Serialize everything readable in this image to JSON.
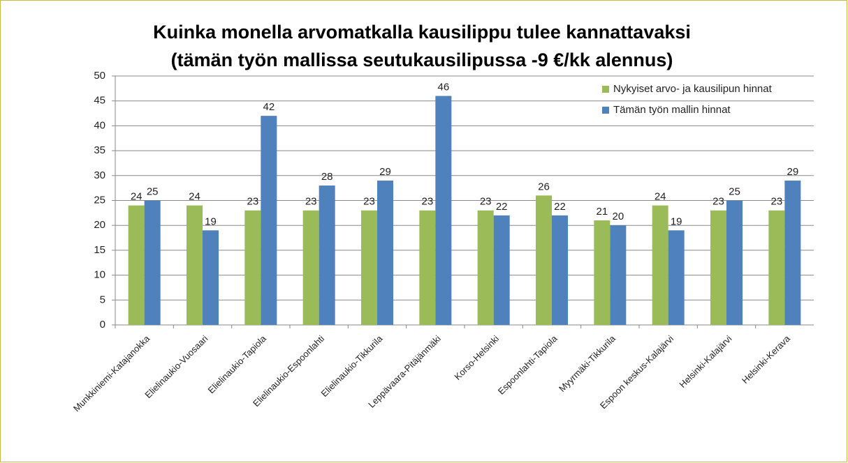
{
  "chart_data": {
    "type": "bar",
    "title_lines": [
      "Kuinka monella arvomatkalla kausilippu tulee kannattavaksi",
      "(tämän työn mallissa seutukausilipussa -9 €/kk alennus)"
    ],
    "categories": [
      "Munkkiniemi-Katajanokka",
      "Elielinaukio-Vuosaari",
      "Elielinaukio-Tapiola",
      "Elielinaukio-Espoonlahti",
      "Elielinaukio-Tikkurila",
      "Leppävaara-Pitäjänmäki",
      "Korso-Helsinki",
      "Espoonlahti-Tapiola",
      "Myyrmäki-Tikkurila",
      "Espoon keskus-Kalajärvi",
      "Helsinki-Kalajärvi",
      "Helsinki-Kerava"
    ],
    "series": [
      {
        "name": "Nykyiset arvo- ja kausilipun hinnat",
        "color": "#9bbb59",
        "values": [
          24,
          24,
          23,
          23,
          23,
          23,
          23,
          26,
          21,
          24,
          23,
          23
        ]
      },
      {
        "name": "Tämän työn mallin hinnat",
        "color": "#4f81bd",
        "values": [
          25,
          19,
          42,
          28,
          29,
          46,
          22,
          22,
          20,
          19,
          25,
          29
        ]
      }
    ],
    "ylim": [
      0,
      50
    ],
    "yticks": [
      0,
      5,
      10,
      15,
      20,
      25,
      30,
      35,
      40,
      45,
      50
    ],
    "grid": true,
    "legend": "top-right"
  }
}
